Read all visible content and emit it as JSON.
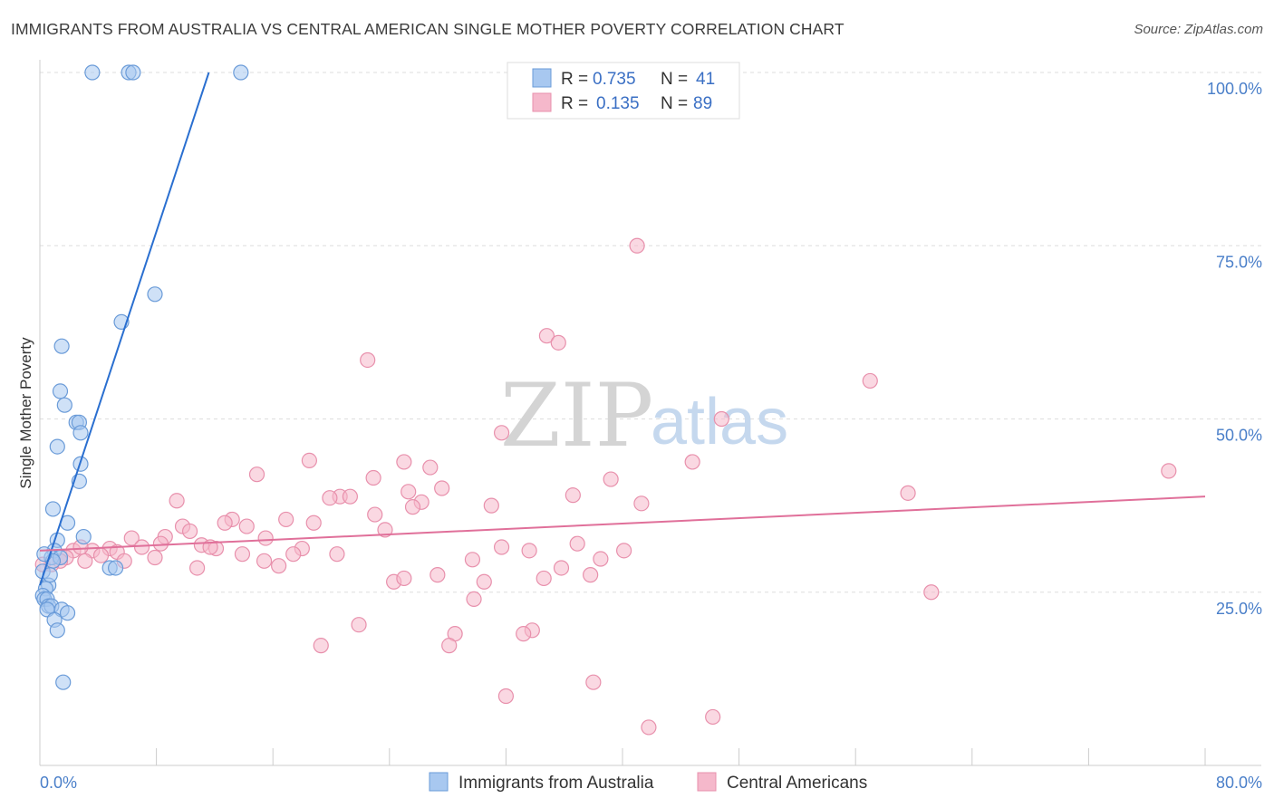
{
  "title": "IMMIGRANTS FROM AUSTRALIA VS CENTRAL AMERICAN SINGLE MOTHER POVERTY CORRELATION CHART",
  "source": "Source: ZipAtlas.com",
  "watermark": {
    "zip": "ZIP",
    "atlas": "atlas"
  },
  "colors": {
    "blue_fill": "#a8c8f0",
    "blue_stroke": "#6a9bd8",
    "blue_line": "#2a6fd0",
    "pink_fill": "#f5b8cb",
    "pink_stroke": "#e890ac",
    "pink_line": "#e0709a",
    "grid": "#dddddd",
    "tick_label": "#4a7fc9"
  },
  "legend": {
    "rows": [
      {
        "r_label": "R =",
        "r_value": "0.735",
        "n_label": "N =",
        "n_value": "41",
        "color": "blue"
      },
      {
        "r_label": "R =",
        "r_value": "0.135",
        "n_label": "N =",
        "n_value": "89",
        "color": "pink"
      }
    ]
  },
  "bottom_legend": [
    "Immigrants from Australia",
    "Central Americans"
  ],
  "chart_data": {
    "type": "scatter",
    "title": "IMMIGRANTS FROM AUSTRALIA VS CENTRAL AMERICAN SINGLE MOTHER POVERTY CORRELATION CHART",
    "xlabel": "",
    "ylabel": "Single Mother Poverty",
    "xlim": [
      0,
      80
    ],
    "ylim": [
      0,
      100
    ],
    "x_tick_labels": [
      "0.0%",
      "80.0%"
    ],
    "y_ticks": [
      25,
      50,
      75,
      100
    ],
    "y_tick_labels": [
      "25.0%",
      "50.0%",
      "75.0%",
      "100.0%"
    ],
    "grid": true,
    "legend_placement": "top-center",
    "series": [
      {
        "name": "Immigrants from Australia",
        "color": "#a8c8f0",
        "trend": {
          "x": [
            0.0,
            11.6
          ],
          "y": [
            26.0,
            100.0
          ]
        },
        "points": [
          {
            "x": 3.6,
            "y": 100.0
          },
          {
            "x": 6.1,
            "y": 100.0
          },
          {
            "x": 6.4,
            "y": 100.0
          },
          {
            "x": 13.8,
            "y": 100.0
          },
          {
            "x": 7.9,
            "y": 68.0
          },
          {
            "x": 5.6,
            "y": 64.0
          },
          {
            "x": 1.5,
            "y": 60.5
          },
          {
            "x": 1.4,
            "y": 54.0
          },
          {
            "x": 1.7,
            "y": 52.0
          },
          {
            "x": 2.5,
            "y": 49.5
          },
          {
            "x": 2.7,
            "y": 49.5
          },
          {
            "x": 2.8,
            "y": 48.0
          },
          {
            "x": 1.2,
            "y": 46.0
          },
          {
            "x": 2.8,
            "y": 43.5
          },
          {
            "x": 2.7,
            "y": 41.0
          },
          {
            "x": 0.9,
            "y": 37.0
          },
          {
            "x": 1.9,
            "y": 35.0
          },
          {
            "x": 3.0,
            "y": 33.0
          },
          {
            "x": 1.2,
            "y": 32.5
          },
          {
            "x": 1.0,
            "y": 31.0
          },
          {
            "x": 0.8,
            "y": 30.0
          },
          {
            "x": 1.4,
            "y": 30.0
          },
          {
            "x": 0.9,
            "y": 29.5
          },
          {
            "x": 0.3,
            "y": 30.5
          },
          {
            "x": 4.8,
            "y": 28.5
          },
          {
            "x": 5.2,
            "y": 28.5
          },
          {
            "x": 0.2,
            "y": 28.0
          },
          {
            "x": 0.6,
            "y": 26.0
          },
          {
            "x": 0.4,
            "y": 25.5
          },
          {
            "x": 0.2,
            "y": 24.5
          },
          {
            "x": 0.3,
            "y": 24.0
          },
          {
            "x": 0.5,
            "y": 24.0
          },
          {
            "x": 0.6,
            "y": 23.0
          },
          {
            "x": 0.8,
            "y": 23.0
          },
          {
            "x": 0.5,
            "y": 22.5
          },
          {
            "x": 1.5,
            "y": 22.5
          },
          {
            "x": 1.9,
            "y": 22.0
          },
          {
            "x": 1.0,
            "y": 21.0
          },
          {
            "x": 1.2,
            "y": 19.5
          },
          {
            "x": 1.6,
            "y": 12.0
          },
          {
            "x": 0.7,
            "y": 27.5
          }
        ]
      },
      {
        "name": "Central Americans",
        "color": "#f5b8cb",
        "trend": {
          "x": [
            0.0,
            80.0
          ],
          "y": [
            31.0,
            38.8
          ]
        },
        "points": [
          {
            "x": 41.0,
            "y": 75.0
          },
          {
            "x": 34.8,
            "y": 62.0
          },
          {
            "x": 35.6,
            "y": 61.0
          },
          {
            "x": 22.5,
            "y": 58.5
          },
          {
            "x": 57.0,
            "y": 55.5
          },
          {
            "x": 46.8,
            "y": 50.0
          },
          {
            "x": 31.7,
            "y": 48.0
          },
          {
            "x": 18.5,
            "y": 44.0
          },
          {
            "x": 25.0,
            "y": 43.8
          },
          {
            "x": 44.8,
            "y": 43.8
          },
          {
            "x": 26.8,
            "y": 43.0
          },
          {
            "x": 77.5,
            "y": 42.5
          },
          {
            "x": 14.9,
            "y": 42.0
          },
          {
            "x": 22.9,
            "y": 41.5
          },
          {
            "x": 39.2,
            "y": 41.3
          },
          {
            "x": 27.6,
            "y": 40.0
          },
          {
            "x": 25.3,
            "y": 39.5
          },
          {
            "x": 59.6,
            "y": 39.3
          },
          {
            "x": 36.6,
            "y": 39.0
          },
          {
            "x": 20.6,
            "y": 38.8
          },
          {
            "x": 21.3,
            "y": 38.8
          },
          {
            "x": 19.9,
            "y": 38.6
          },
          {
            "x": 9.4,
            "y": 38.2
          },
          {
            "x": 26.2,
            "y": 38.0
          },
          {
            "x": 41.3,
            "y": 37.8
          },
          {
            "x": 25.6,
            "y": 37.3
          },
          {
            "x": 31.0,
            "y": 37.5
          },
          {
            "x": 23.0,
            "y": 36.2
          },
          {
            "x": 16.9,
            "y": 35.5
          },
          {
            "x": 13.2,
            "y": 35.5
          },
          {
            "x": 12.7,
            "y": 35.0
          },
          {
            "x": 18.8,
            "y": 35.0
          },
          {
            "x": 14.2,
            "y": 34.5
          },
          {
            "x": 9.8,
            "y": 34.5
          },
          {
            "x": 10.3,
            "y": 33.8
          },
          {
            "x": 23.7,
            "y": 34.0
          },
          {
            "x": 8.6,
            "y": 33.0
          },
          {
            "x": 15.5,
            "y": 32.8
          },
          {
            "x": 6.3,
            "y": 32.8
          },
          {
            "x": 36.9,
            "y": 32.0
          },
          {
            "x": 8.3,
            "y": 32.0
          },
          {
            "x": 11.1,
            "y": 31.8
          },
          {
            "x": 7.0,
            "y": 31.5
          },
          {
            "x": 31.7,
            "y": 31.5
          },
          {
            "x": 12.1,
            "y": 31.3
          },
          {
            "x": 11.7,
            "y": 31.5
          },
          {
            "x": 4.8,
            "y": 31.3
          },
          {
            "x": 18.0,
            "y": 31.3
          },
          {
            "x": 33.6,
            "y": 31.0
          },
          {
            "x": 40.1,
            "y": 31.0
          },
          {
            "x": 3.6,
            "y": 31.0
          },
          {
            "x": 2.3,
            "y": 31.0
          },
          {
            "x": 5.3,
            "y": 30.8
          },
          {
            "x": 13.9,
            "y": 30.5
          },
          {
            "x": 20.4,
            "y": 30.5
          },
          {
            "x": 17.4,
            "y": 30.5
          },
          {
            "x": 4.2,
            "y": 30.3
          },
          {
            "x": 7.9,
            "y": 30.0
          },
          {
            "x": 1.8,
            "y": 30.0
          },
          {
            "x": 38.5,
            "y": 29.8
          },
          {
            "x": 29.7,
            "y": 29.7
          },
          {
            "x": 5.8,
            "y": 29.5
          },
          {
            "x": 3.1,
            "y": 29.5
          },
          {
            "x": 1.4,
            "y": 29.5
          },
          {
            "x": 15.4,
            "y": 29.5
          },
          {
            "x": 0.8,
            "y": 29.0
          },
          {
            "x": 0.2,
            "y": 29.0
          },
          {
            "x": 16.4,
            "y": 28.8
          },
          {
            "x": 35.8,
            "y": 28.5
          },
          {
            "x": 10.8,
            "y": 28.5
          },
          {
            "x": 37.8,
            "y": 27.5
          },
          {
            "x": 27.3,
            "y": 27.5
          },
          {
            "x": 34.6,
            "y": 27.0
          },
          {
            "x": 24.3,
            "y": 26.5
          },
          {
            "x": 30.5,
            "y": 26.5
          },
          {
            "x": 61.2,
            "y": 25.0
          },
          {
            "x": 29.8,
            "y": 24.0
          },
          {
            "x": 21.9,
            "y": 20.3
          },
          {
            "x": 33.8,
            "y": 19.5
          },
          {
            "x": 33.2,
            "y": 19.0
          },
          {
            "x": 28.5,
            "y": 19.0
          },
          {
            "x": 19.3,
            "y": 17.3
          },
          {
            "x": 28.1,
            "y": 17.3
          },
          {
            "x": 38.0,
            "y": 12.0
          },
          {
            "x": 32.0,
            "y": 10.0
          },
          {
            "x": 46.2,
            "y": 7.0
          },
          {
            "x": 41.8,
            "y": 5.5
          },
          {
            "x": 25.0,
            "y": 27.0
          },
          {
            "x": 2.8,
            "y": 31.5
          }
        ]
      }
    ]
  }
}
